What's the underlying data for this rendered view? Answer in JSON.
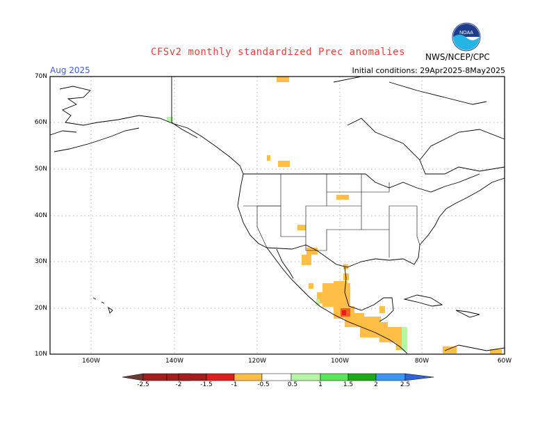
{
  "header": {
    "title": "CFSv2 monthly standardized Prec anomalies",
    "agency": "NWS/NCEP/CPC",
    "valid_month": "Aug 2025",
    "initial_conditions": "Initial conditions: 29Apr2025-8May2025",
    "logo_text": "NOAA"
  },
  "axes": {
    "lat_labels": [
      "70N",
      "60N",
      "50N",
      "40N",
      "30N",
      "20N",
      "10N"
    ],
    "lon_labels": [
      "160W",
      "140W",
      "120W",
      "100W",
      "80W",
      "60W"
    ]
  },
  "colorbar": {
    "labels": [
      "-2.5",
      "-2",
      "-1.5",
      "-1",
      "-0.5",
      "0.5",
      "1",
      "1.5",
      "2",
      "2.5"
    ],
    "colors": [
      "#6e3a33",
      "#a51d1d",
      "#e01e1e",
      "#ff5a1e",
      "#ffbe46",
      "#ffffff",
      "#b6f5a5",
      "#59e65a",
      "#18ad18",
      "#3c96f5",
      "#2d64dc"
    ]
  },
  "colors": {
    "dry_moderate": "#ffbe46",
    "dry_strong": "#ff5a1e",
    "dry_very_strong": "#e01e1e",
    "wet_moderate": "#b6f5a5",
    "title_red": "#e8413a",
    "label_blue": "#3c5ad6"
  }
}
